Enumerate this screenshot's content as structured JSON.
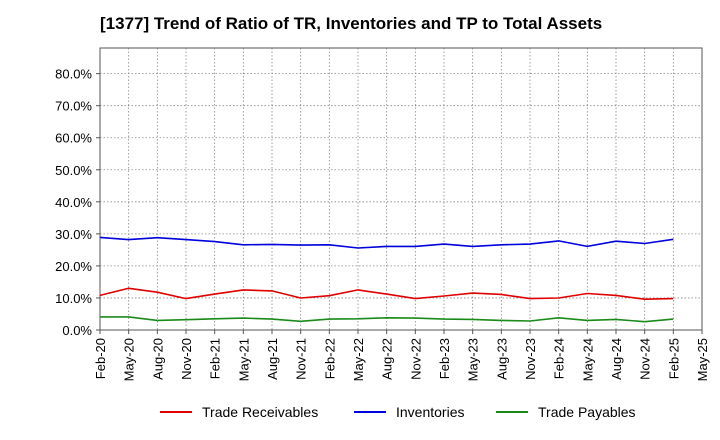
{
  "chart_data": {
    "type": "line",
    "title": "[1377]  Trend of Ratio of TR, Inventories and TP to Total Assets",
    "xlabel": "",
    "ylabel": "",
    "ylim": [
      0,
      88
    ],
    "y_ticks": [
      "0.0%",
      "10.0%",
      "20.0%",
      "30.0%",
      "40.0%",
      "50.0%",
      "60.0%",
      "70.0%",
      "80.0%"
    ],
    "y_tick_values": [
      0,
      10,
      20,
      30,
      40,
      50,
      60,
      70,
      80
    ],
    "x_tick_labels": [
      "Feb-20",
      "May-20",
      "Aug-20",
      "Nov-20",
      "Feb-21",
      "May-21",
      "Aug-21",
      "Nov-21",
      "Feb-22",
      "May-22",
      "Aug-22",
      "Nov-22",
      "Feb-23",
      "May-23",
      "Aug-23",
      "Nov-23",
      "Feb-24",
      "May-24",
      "Aug-24",
      "Nov-24",
      "Feb-25",
      "May-25"
    ],
    "grid": true,
    "legend_position": "bottom",
    "categories": [
      "Feb-20",
      "May-20",
      "Aug-20",
      "Nov-20",
      "Feb-21",
      "May-21",
      "Aug-21",
      "Nov-21",
      "Feb-22",
      "May-22",
      "Aug-22",
      "Nov-22",
      "Feb-23",
      "May-23",
      "Aug-23",
      "Nov-23",
      "Feb-24",
      "May-24",
      "Aug-24",
      "Nov-24",
      "Feb-25"
    ],
    "series": [
      {
        "name": "Trade Receivables",
        "color": "#e00000",
        "values": [
          10.8,
          13.0,
          11.8,
          9.8,
          11.2,
          12.5,
          12.2,
          10.0,
          10.7,
          12.5,
          11.2,
          9.8,
          10.6,
          11.5,
          11.1,
          9.8,
          10.0,
          11.4,
          10.8,
          9.6,
          9.8
        ]
      },
      {
        "name": "Inventories",
        "color": "#0000dd",
        "values": [
          28.9,
          28.2,
          28.8,
          28.2,
          27.6,
          26.6,
          26.7,
          26.5,
          26.6,
          25.6,
          26.1,
          26.1,
          26.8,
          26.1,
          26.6,
          26.8,
          27.8,
          26.1,
          27.7,
          27.0,
          28.3
        ]
      },
      {
        "name": "Trade Payables",
        "color": "#1a8a1a",
        "values": [
          4.1,
          4.1,
          3.0,
          3.2,
          3.5,
          3.7,
          3.4,
          2.7,
          3.4,
          3.5,
          3.8,
          3.7,
          3.4,
          3.3,
          3.0,
          2.8,
          3.8,
          3.0,
          3.3,
          2.6,
          3.4
        ]
      }
    ]
  }
}
